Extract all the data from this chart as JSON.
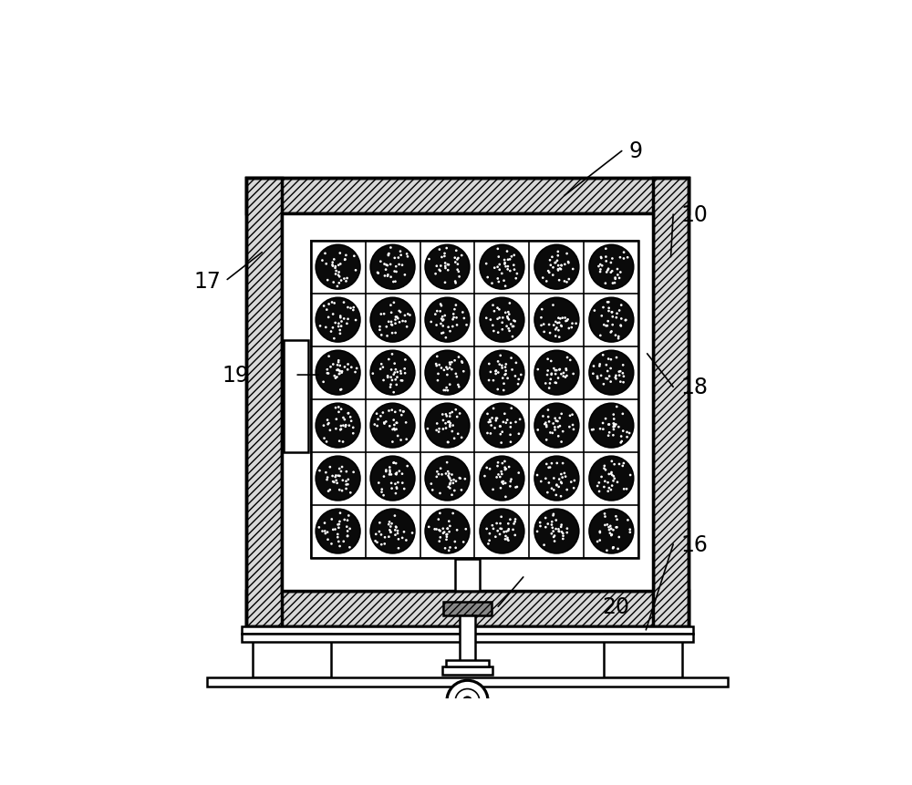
{
  "bg_color": "#ffffff",
  "lc": "#000000",
  "lw_thick": 2.5,
  "lw_med": 1.8,
  "lw_thin": 1.2,
  "label_fontsize": 17,
  "grid_rows": 6,
  "grid_cols": 6,
  "OX": 0.135,
  "OY": 0.12,
  "OW": 0.73,
  "OH": 0.74,
  "wall": 0.058
}
